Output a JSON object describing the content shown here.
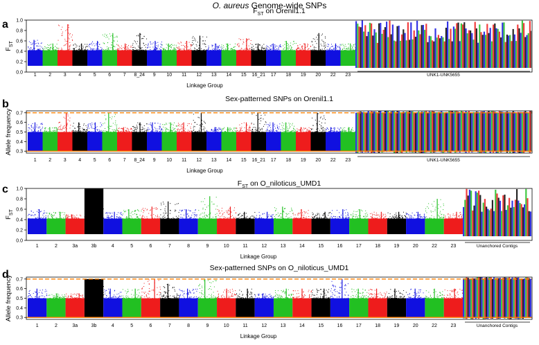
{
  "figure": {
    "title_italic": "O. aureus",
    "title_rest": " Genome-wide SNPs",
    "colors": {
      "blue": "#1010e0",
      "green": "#22c022",
      "red": "#ee1c1c",
      "black": "#000000",
      "orange": "#ff8000",
      "white": "#ffffff"
    }
  },
  "chart_data": [
    {
      "id": "a",
      "panel_label": "a",
      "type": "scatter",
      "title": "F",
      "title_sub": "ST",
      "title_rest": "  on Orenil1.1",
      "ylabel": "F",
      "ylabel_sub": "ST",
      "xlabel": "Linkage Group",
      "ylim": [
        0,
        1.0
      ],
      "yticks": [
        0.0,
        0.2,
        0.4,
        0.6,
        0.8,
        1.0
      ],
      "ytick_labels": [
        "0.0",
        "0.2",
        "0.4",
        "0.6",
        "0.8",
        "1.0"
      ],
      "groups": [
        {
          "label": "1",
          "color": "blue",
          "peak": 0.62
        },
        {
          "label": "2",
          "color": "green",
          "peak": 0.55
        },
        {
          "label": "3",
          "color": "red",
          "peak": 0.92
        },
        {
          "label": "4",
          "color": "black",
          "peak": 0.55
        },
        {
          "label": "5",
          "color": "blue",
          "peak": 0.6
        },
        {
          "label": "6",
          "color": "green",
          "peak": 0.75
        },
        {
          "label": "7",
          "color": "red",
          "peak": 0.55
        },
        {
          "label": "8_24",
          "color": "black",
          "peak": 0.75
        },
        {
          "label": "9",
          "color": "blue",
          "peak": 0.6
        },
        {
          "label": "10",
          "color": "green",
          "peak": 0.55
        },
        {
          "label": "11",
          "color": "red",
          "peak": 0.6
        },
        {
          "label": "12",
          "color": "black",
          "peak": 0.7
        },
        {
          "label": "13",
          "color": "blue",
          "peak": 0.55
        },
        {
          "label": "14",
          "color": "green",
          "peak": 0.55
        },
        {
          "label": "15",
          "color": "red",
          "peak": 0.65
        },
        {
          "label": "16_21",
          "color": "black",
          "peak": 0.55
        },
        {
          "label": "17",
          "color": "blue",
          "peak": 0.55
        },
        {
          "label": "18",
          "color": "green",
          "peak": 0.6
        },
        {
          "label": "19",
          "color": "red",
          "peak": 0.55
        },
        {
          "label": "20",
          "color": "black",
          "peak": 0.75
        },
        {
          "label": "22",
          "color": "blue",
          "peak": 0.55
        },
        {
          "label": "23",
          "color": "green",
          "peak": 0.55
        }
      ],
      "unanchored_label": "UNK1-UNK5655",
      "threshold_lines": []
    },
    {
      "id": "b",
      "panel_label": "b",
      "type": "scatter",
      "title": "Sex-patterned SNPs on Orenil1.1",
      "title_sub": "",
      "title_rest": "",
      "ylabel": "Allele frequency",
      "ylabel_sub": "",
      "xlabel": "Linkage Group",
      "ylim": [
        0.28,
        0.72
      ],
      "yticks": [
        0.3,
        0.4,
        0.5,
        0.6,
        0.7
      ],
      "ytick_labels": [
        "0.3",
        "0.4",
        "0.5",
        "0.6",
        "0.7"
      ],
      "groups": [
        {
          "label": "1",
          "color": "blue",
          "peak": 0.6
        },
        {
          "label": "2",
          "color": "green",
          "peak": 0.55
        },
        {
          "label": "3",
          "color": "red",
          "peak": 0.7
        },
        {
          "label": "4",
          "color": "black",
          "peak": 0.6
        },
        {
          "label": "5",
          "color": "blue",
          "peak": 0.6
        },
        {
          "label": "6",
          "color": "green",
          "peak": 0.7
        },
        {
          "label": "7",
          "color": "red",
          "peak": 0.55
        },
        {
          "label": "8_24",
          "color": "black",
          "peak": 0.6
        },
        {
          "label": "9",
          "color": "blue",
          "peak": 0.6
        },
        {
          "label": "10",
          "color": "green",
          "peak": 0.6
        },
        {
          "label": "11",
          "color": "red",
          "peak": 0.6
        },
        {
          "label": "12",
          "color": "black",
          "peak": 0.7
        },
        {
          "label": "13",
          "color": "blue",
          "peak": 0.55
        },
        {
          "label": "14",
          "color": "green",
          "peak": 0.55
        },
        {
          "label": "15",
          "color": "red",
          "peak": 0.6
        },
        {
          "label": "16_21",
          "color": "black",
          "peak": 0.7
        },
        {
          "label": "17",
          "color": "blue",
          "peak": 0.6
        },
        {
          "label": "18",
          "color": "green",
          "peak": 0.6
        },
        {
          "label": "19",
          "color": "red",
          "peak": 0.55
        },
        {
          "label": "20",
          "color": "black",
          "peak": 0.7
        },
        {
          "label": "22",
          "color": "blue",
          "peak": 0.55
        },
        {
          "label": "23",
          "color": "green",
          "peak": 0.55
        }
      ],
      "unanchored_label": "UNK1-UNK5655",
      "threshold_lines": [
        0.3,
        0.7
      ]
    },
    {
      "id": "c",
      "panel_label": "c",
      "type": "scatter",
      "title": "F",
      "title_sub": "ST",
      "title_rest": " on O_niloticus_UMD1",
      "ylabel": "F",
      "ylabel_sub": "ST",
      "xlabel": "Linkage Group",
      "ylim": [
        0,
        1.0
      ],
      "yticks": [
        0.0,
        0.2,
        0.4,
        0.6,
        0.8,
        1.0
      ],
      "ytick_labels": [
        "0.0",
        "0.2",
        "0.4",
        "0.6",
        "0.8",
        "1.0"
      ],
      "groups": [
        {
          "label": "1",
          "color": "blue",
          "peak": 0.6
        },
        {
          "label": "2",
          "color": "green",
          "peak": 0.55
        },
        {
          "label": "3a",
          "color": "red",
          "peak": 0.5
        },
        {
          "label": "3b",
          "color": "black",
          "peak": 1.0
        },
        {
          "label": "4",
          "color": "blue",
          "peak": 0.55
        },
        {
          "label": "5",
          "color": "green",
          "peak": 0.6
        },
        {
          "label": "6",
          "color": "red",
          "peak": 0.65
        },
        {
          "label": "7",
          "color": "black",
          "peak": 0.75
        },
        {
          "label": "8",
          "color": "blue",
          "peak": 0.6
        },
        {
          "label": "9",
          "color": "green",
          "peak": 0.85
        },
        {
          "label": "10",
          "color": "red",
          "peak": 0.65
        },
        {
          "label": "11",
          "color": "black",
          "peak": 0.55
        },
        {
          "label": "12",
          "color": "blue",
          "peak": 0.55
        },
        {
          "label": "13",
          "color": "green",
          "peak": 0.65
        },
        {
          "label": "14",
          "color": "red",
          "peak": 0.6
        },
        {
          "label": "15",
          "color": "black",
          "peak": 0.55
        },
        {
          "label": "16",
          "color": "blue",
          "peak": 0.6
        },
        {
          "label": "17",
          "color": "green",
          "peak": 0.6
        },
        {
          "label": "18",
          "color": "red",
          "peak": 0.55
        },
        {
          "label": "19",
          "color": "black",
          "peak": 0.55
        },
        {
          "label": "20",
          "color": "blue",
          "peak": 0.55
        },
        {
          "label": "22",
          "color": "green",
          "peak": 0.8
        },
        {
          "label": "23",
          "color": "red",
          "peak": 0.55
        }
      ],
      "unanchored_label": "Unanchored Contigs",
      "threshold_lines": []
    },
    {
      "id": "d",
      "panel_label": "d",
      "type": "scatter",
      "title": "Sex-patterned SNPs on O_niloticus_UMD1",
      "title_sub": "",
      "title_rest": "",
      "ylabel": "Allele frequency",
      "ylabel_sub": "",
      "xlabel": "Linkage Group",
      "ylim": [
        0.28,
        0.72
      ],
      "yticks": [
        0.3,
        0.4,
        0.5,
        0.6,
        0.7
      ],
      "ytick_labels": [
        "0.3",
        "0.4",
        "0.5",
        "0.6",
        "0.7"
      ],
      "groups": [
        {
          "label": "1",
          "color": "blue",
          "peak": 0.6
        },
        {
          "label": "2",
          "color": "green",
          "peak": 0.55
        },
        {
          "label": "3a",
          "color": "red",
          "peak": 0.55
        },
        {
          "label": "3b",
          "color": "black",
          "peak": 0.7
        },
        {
          "label": "4",
          "color": "blue",
          "peak": 0.6
        },
        {
          "label": "5",
          "color": "green",
          "peak": 0.6
        },
        {
          "label": "6",
          "color": "red",
          "peak": 0.7
        },
        {
          "label": "7",
          "color": "black",
          "peak": 0.65
        },
        {
          "label": "8",
          "color": "blue",
          "peak": 0.6
        },
        {
          "label": "9",
          "color": "green",
          "peak": 0.7
        },
        {
          "label": "10",
          "color": "red",
          "peak": 0.6
        },
        {
          "label": "11",
          "color": "black",
          "peak": 0.6
        },
        {
          "label": "12",
          "color": "blue",
          "peak": 0.55
        },
        {
          "label": "13",
          "color": "green",
          "peak": 0.6
        },
        {
          "label": "14",
          "color": "red",
          "peak": 0.6
        },
        {
          "label": "15",
          "color": "black",
          "peak": 0.6
        },
        {
          "label": "16",
          "color": "blue",
          "peak": 0.7
        },
        {
          "label": "17",
          "color": "green",
          "peak": 0.6
        },
        {
          "label": "18",
          "color": "red",
          "peak": 0.6
        },
        {
          "label": "19",
          "color": "black",
          "peak": 0.6
        },
        {
          "label": "20",
          "color": "blue",
          "peak": 0.6
        },
        {
          "label": "22",
          "color": "green",
          "peak": 0.6
        },
        {
          "label": "23",
          "color": "red",
          "peak": 0.6
        }
      ],
      "unanchored_label": "Unanchored Contigs",
      "threshold_lines": [
        0.3,
        0.7
      ]
    }
  ]
}
